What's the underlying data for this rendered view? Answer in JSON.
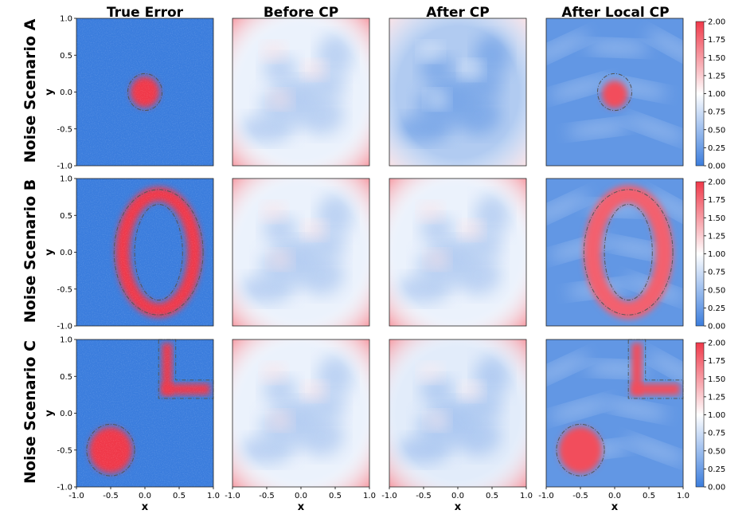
{
  "chart_data": {
    "type": "heatmap",
    "layout": "3 rows x 4 columns of heatmap panels with shared colorbar per row",
    "column_titles": [
      "True Error",
      "Before CP",
      "After CP",
      "After Local CP"
    ],
    "row_titles": [
      "Noise Scenario A",
      "Noise Scenario B",
      "Noise Scenario C"
    ],
    "xlabel": "x",
    "ylabel": "y",
    "xlim": [
      -1.0,
      1.0
    ],
    "ylim": [
      -1.0,
      1.0
    ],
    "x_ticks": [
      "-1.0",
      "-0.5",
      "0.0",
      "0.5",
      "1.0"
    ],
    "y_ticks": [
      "1.0",
      "0.5",
      "0.0",
      "-0.5",
      "-1.0"
    ],
    "colorbar": {
      "range": [
        0.0,
        2.0
      ],
      "ticks": [
        "2.00",
        "1.75",
        "1.50",
        "1.25",
        "1.00",
        "0.75",
        "0.50",
        "0.25",
        "0.00"
      ],
      "colormap": [
        "#3b7ddd",
        "#ffffff",
        "#f0394a"
      ]
    },
    "scenarios": [
      {
        "name": "Noise Scenario A",
        "high_noise_region": {
          "shape": "circle",
          "center": [
            0.0,
            0.0
          ],
          "radius": 0.25
        },
        "panel_values": {
          "True Error": {
            "inside": 2.0,
            "outside": 0.0
          },
          "Before CP": {
            "mean": 0.9
          },
          "After CP": {
            "mean": 0.6
          },
          "After Local CP": {
            "inside": 1.9,
            "outside": 0.2
          }
        }
      },
      {
        "name": "Noise Scenario B",
        "high_noise_region": {
          "shape": "ellipse-ring",
          "center": [
            0.2,
            0.0
          ],
          "outer_radii": [
            0.65,
            0.85
          ],
          "inner_radii": [
            0.35,
            0.65
          ]
        },
        "panel_values": {
          "True Error": {
            "inside": 2.0,
            "outside": 0.0
          },
          "Before CP": {
            "mean": 0.9
          },
          "After CP": {
            "mean": 0.9
          },
          "After Local CP": {
            "inside": 1.8,
            "outside": 0.2
          }
        }
      },
      {
        "name": "Noise Scenario C",
        "high_noise_region": {
          "shape": "circle + L-shape",
          "circle_center": [
            -0.5,
            -0.5
          ],
          "circle_radius": 0.35,
          "L_vertical_x": [
            0.2,
            0.45
          ],
          "L_vertical_y": [
            0.2,
            1.0
          ],
          "L_horizontal_x": [
            0.2,
            1.0
          ],
          "L_horizontal_y": [
            0.2,
            0.45
          ]
        },
        "panel_values": {
          "True Error": {
            "inside": 2.0,
            "outside": 0.0
          },
          "Before CP": {
            "mean": 0.9
          },
          "After CP": {
            "mean": 0.85
          },
          "After Local CP": {
            "inside": 1.9,
            "outside": 0.2
          }
        }
      }
    ]
  }
}
